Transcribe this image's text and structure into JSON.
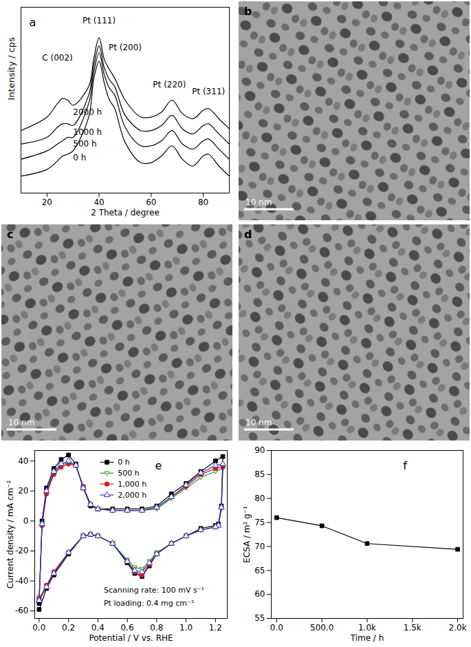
{
  "chart_data": [
    {
      "type": "line",
      "title": "a",
      "x_label": "2 Theta / degree",
      "y_label": "Intensity / cps",
      "x": [
        10,
        20,
        24,
        26,
        28,
        30,
        36,
        38,
        40,
        42,
        44,
        46,
        50,
        56,
        60,
        64,
        68,
        72,
        76,
        80,
        82,
        86,
        90
      ],
      "series": [
        {
          "name": "0 h",
          "color": "#000000",
          "values": [
            10,
            14,
            19,
            22,
            23,
            25,
            45,
            68,
            78,
            65,
            55,
            50,
            30,
            18,
            18,
            22,
            28,
            20,
            16,
            22,
            23,
            16,
            10
          ]
        },
        {
          "name": "500 h",
          "color": "#000000",
          "values": [
            20,
            25,
            29,
            31,
            33,
            33,
            53,
            72,
            83,
            70,
            62,
            58,
            39,
            28,
            28,
            31,
            37,
            29,
            26,
            31,
            32,
            26,
            20
          ]
        },
        {
          "name": "1000 h",
          "color": "#000000",
          "values": [
            29,
            33,
            39,
            41,
            41,
            40,
            58,
            76,
            87,
            74,
            67,
            63,
            46,
            37,
            37,
            40,
            46,
            38,
            35,
            40,
            41,
            35,
            29
          ]
        },
        {
          "name": "2000 h",
          "color": "#000000",
          "values": [
            37,
            45,
            53,
            56,
            55,
            52,
            63,
            80,
            92,
            79,
            73,
            68,
            55,
            45,
            45,
            48,
            55,
            47,
            44,
            49,
            50,
            44,
            38
          ]
        }
      ],
      "xlim": [
        10,
        90
      ],
      "xticks": [
        20,
        40,
        60,
        80
      ],
      "ylim": [
        0,
        110
      ],
      "tick_labels": "x",
      "annotations": [
        {
          "text": "C (002)",
          "x": 24,
          "y": 80
        },
        {
          "text": "Pt (111)",
          "x": 40,
          "y": 102
        },
        {
          "text": "Pt (200)",
          "x": 50,
          "y": 86
        },
        {
          "text": "Pt (220)",
          "x": 67,
          "y": 64
        },
        {
          "text": "Pt (311)",
          "x": 82,
          "y": 60
        }
      ]
    },
    {
      "type": "image",
      "title": "b",
      "annotations": [
        {
          "text": "10 nm"
        }
      ]
    },
    {
      "type": "image",
      "title": "c",
      "annotations": [
        {
          "text": "10 nm"
        }
      ]
    },
    {
      "type": "image",
      "title": "d",
      "annotations": [
        {
          "text": "10 nm"
        }
      ]
    },
    {
      "type": "line",
      "title": "e",
      "x_label": "Potential / V vs. RHE",
      "y_label": "Current density / mA cm⁻²",
      "x": [
        0,
        0.02,
        0.05,
        0.1,
        0.15,
        0.2,
        0.25,
        0.3,
        0.35,
        0.4,
        0.5,
        0.6,
        0.7,
        0.8,
        0.9,
        1.0,
        1.1,
        1.2,
        1.25,
        1.24,
        1.22,
        1.2,
        1.1,
        1.0,
        0.9,
        0.8,
        0.75,
        0.7,
        0.65,
        0.6,
        0.5,
        0.4,
        0.35,
        0.3,
        0.2,
        0.1,
        0.05,
        0.0
      ],
      "series": [
        {
          "name": "0 h",
          "color": "#000000",
          "marker": "square",
          "values": [
            -55,
            0,
            22,
            35,
            41,
            44,
            38,
            22,
            10,
            8,
            8,
            8,
            8,
            10,
            18,
            25,
            33,
            40,
            43,
            10,
            -2,
            -3,
            -5,
            -10,
            -15,
            -22,
            -30,
            -37,
            -35,
            -28,
            -15,
            -10,
            -9,
            -10,
            -22,
            -36,
            -45,
            -59
          ]
        },
        {
          "name": "500 h",
          "color": "#1f9a1f",
          "marker": "triangle-down-open",
          "values": [
            -51,
            -2,
            19,
            32,
            37,
            39,
            37,
            23,
            11,
            8,
            7,
            7,
            7,
            8,
            15,
            22,
            29,
            33,
            35,
            8,
            -3,
            -4,
            -6,
            -10,
            -15,
            -21,
            -27,
            -32,
            -31,
            -26,
            -15,
            -10,
            -9,
            -10,
            -21,
            -34,
            -43,
            -52
          ]
        },
        {
          "name": "1,000 h",
          "color": "#e3141e",
          "marker": "circle",
          "values": [
            -52,
            -3,
            18,
            31,
            36,
            38,
            37,
            23,
            11,
            8,
            7,
            7,
            7,
            9,
            16,
            23,
            31,
            35,
            36,
            9,
            -3,
            -4,
            -6,
            -10,
            -15,
            -22,
            -29,
            -36,
            -34,
            -27,
            -15,
            -10,
            -9,
            -10,
            -21,
            -34,
            -43,
            -52
          ]
        },
        {
          "name": "2,000 h",
          "color": "#2035c0",
          "marker": "triangle-open",
          "values": [
            -53,
            -2,
            20,
            33,
            38,
            40,
            37,
            22,
            11,
            8,
            7,
            7,
            7,
            9,
            16,
            24,
            32,
            37,
            38,
            9,
            -3,
            -4,
            -6,
            -10,
            -15,
            -22,
            -28,
            -34,
            -33,
            -27,
            -15,
            -10,
            -9,
            -10,
            -21,
            -35,
            -44,
            -53
          ]
        }
      ],
      "xlim": [
        -0.03,
        1.28
      ],
      "xticks": [
        {
          "value": 0,
          "label": "0.0"
        },
        0.2,
        0.4,
        0.6,
        0.8,
        {
          "value": 1,
          "label": "1.0"
        },
        1.2
      ],
      "ylim": [
        -65,
        47
      ],
      "yticks": [
        -60,
        -40,
        -20,
        0,
        20,
        40
      ],
      "legend": "top",
      "annotations": [
        {
          "text": "Scanning rate: 100 mV s⁻¹",
          "x": 0.44,
          "y": -46
        },
        {
          "text": "Pt loading: 0.4 mg cm⁻²",
          "x": 0.44,
          "y": -55
        }
      ]
    },
    {
      "type": "line",
      "title": "f",
      "x_label": "Time / h",
      "y_label": "ECSA / m² g⁻¹",
      "x": [
        0,
        500,
        1000,
        2000
      ],
      "series": [
        {
          "color": "#000000",
          "marker": "square",
          "values": [
            76,
            74.3,
            70.6,
            69.4
          ]
        }
      ],
      "xlim": [
        -60,
        2060
      ],
      "xticks": [
        {
          "value": 0,
          "label": "0.0"
        },
        {
          "value": 500,
          "label": "500.0"
        },
        {
          "value": 1000,
          "label": "1.0k"
        },
        {
          "value": 1500,
          "label": "1.5k"
        },
        {
          "value": 2000,
          "label": "2.0k"
        }
      ],
      "ylim": [
        55,
        90
      ],
      "yticks": [
        55,
        60,
        65,
        70,
        75,
        80,
        85,
        90
      ]
    }
  ]
}
